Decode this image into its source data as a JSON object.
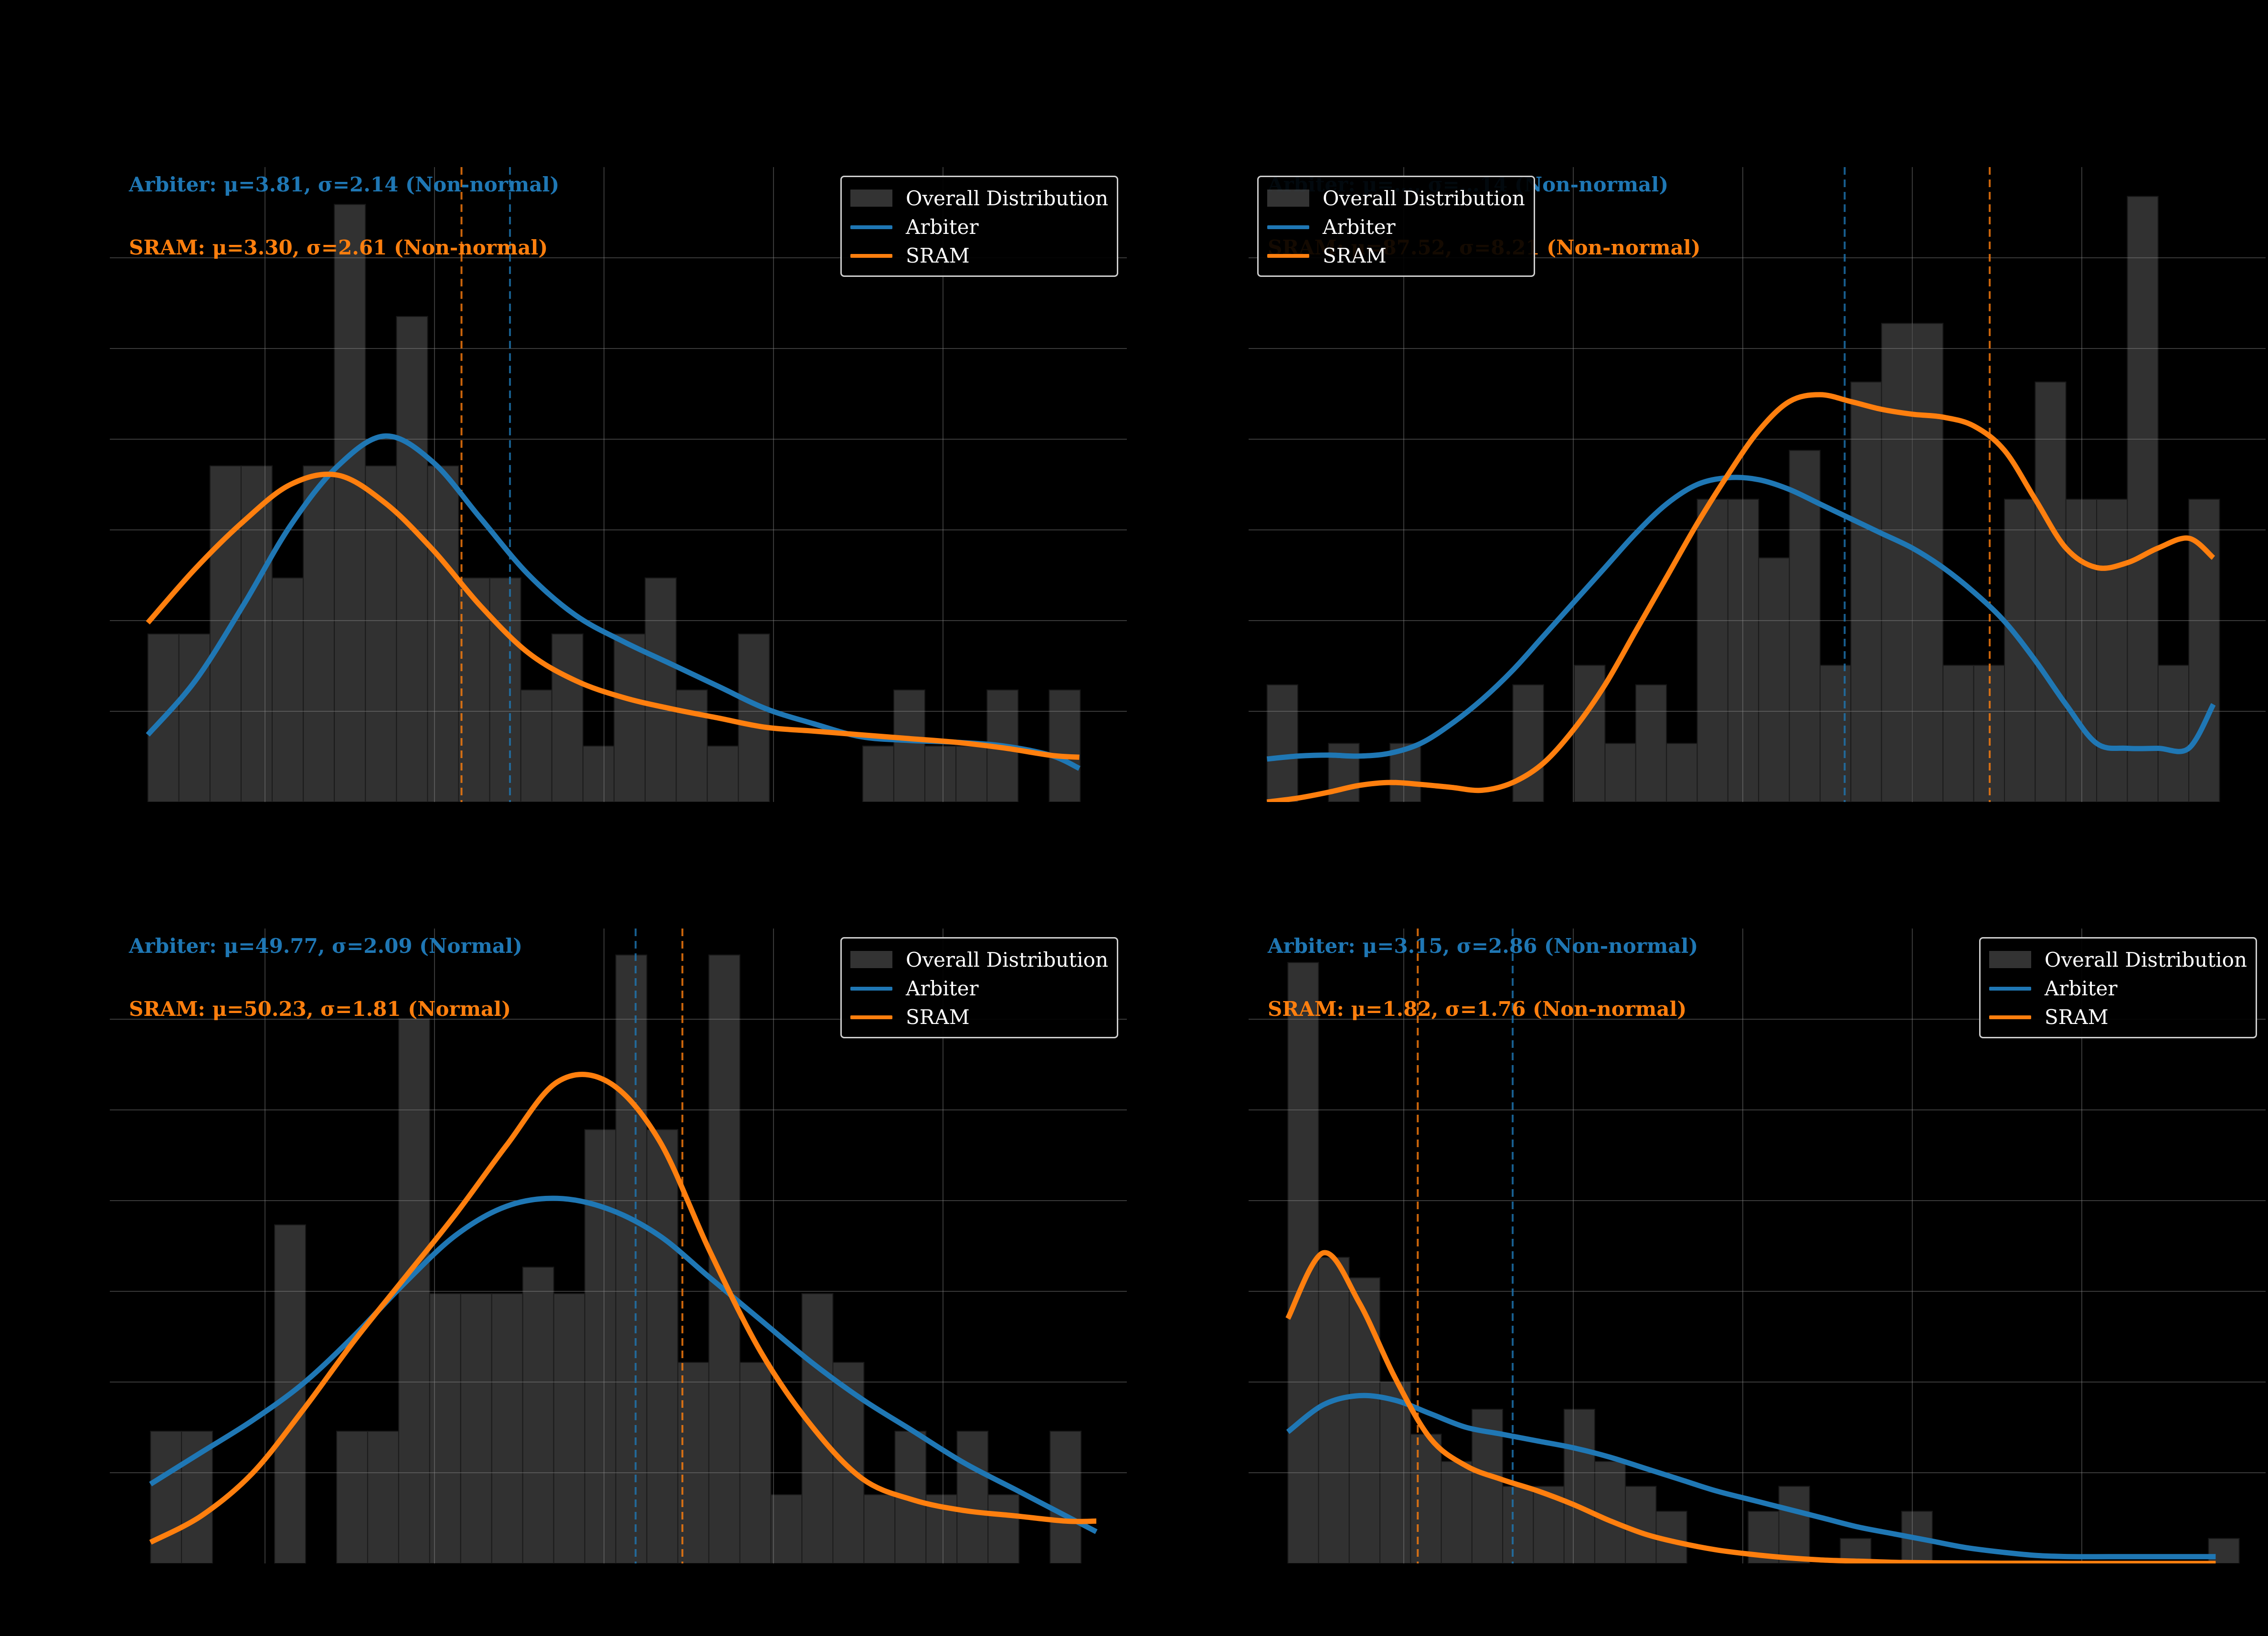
{
  "colors": {
    "arbiter": "#1f77b4",
    "sram": "#ff7f0e",
    "hist": "#3a3a3a",
    "grid": "#8a8a8a",
    "background": "#000000"
  },
  "legend": {
    "overall": "Overall Distribution",
    "arbiter": "Arbiter",
    "sram": "SRAM"
  },
  "chart_data": [
    {
      "type": "histogram-kde",
      "legend_position": "top-right",
      "arbiter_stats": "Arbiter: μ=3.81, σ=2.14 (Non-normal)",
      "sram_stats": "SRAM: μ=3.30, σ=2.61 (Non-normal)",
      "arbiter_mean": 3.81,
      "sram_mean": 3.3,
      "xlim": [
        -0.4,
        10.3
      ],
      "ylim": [
        0,
        34
      ],
      "bins_start": 0.0,
      "bin_width": 0.327,
      "counts": [
        9,
        9,
        18,
        18,
        12,
        18,
        32,
        18,
        26,
        18,
        12,
        12,
        6,
        9,
        3,
        9,
        12,
        6,
        3,
        9,
        0,
        0,
        0,
        3,
        6,
        3,
        3,
        6,
        0,
        6
      ],
      "kde_x": [
        0,
        0.5,
        1,
        1.5,
        2,
        2.5,
        3,
        3.5,
        4,
        4.5,
        5,
        5.5,
        6,
        6.5,
        7,
        7.5,
        8,
        8.5,
        9,
        9.5,
        9.8
      ],
      "arbiter_kde": [
        3.6,
        6.5,
        10.5,
        14.8,
        18.0,
        19.6,
        18.2,
        15.2,
        12.2,
        10.0,
        8.6,
        7.4,
        6.2,
        5.0,
        4.2,
        3.5,
        3.3,
        3.2,
        3.0,
        2.5,
        1.8
      ],
      "sram_kde": [
        9.6,
        12.5,
        15.0,
        17.0,
        17.5,
        16.0,
        13.5,
        10.5,
        8.0,
        6.5,
        5.6,
        5.0,
        4.5,
        4.0,
        3.8,
        3.6,
        3.4,
        3.2,
        2.9,
        2.5,
        2.4
      ]
    },
    {
      "type": "histogram-kde",
      "legend_position": "top-left",
      "arbiter_stats": "Arbiter: μ=…, σ=…14 (Non-normal)",
      "sram_stats": "SRAM: μ=87.52, σ=8.21 (Non-normal)",
      "arbiter_mean": 82.8,
      "sram_mean": 87.52,
      "xlim": [
        63.4,
        96.5
      ],
      "ylim": [
        0,
        6.5
      ],
      "bins_start": 64.0,
      "bin_width": 1.0,
      "counts": [
        1.2,
        0,
        0.6,
        0,
        0.6,
        0,
        0,
        0,
        1.2,
        0,
        1.4,
        0.6,
        1.2,
        0.6,
        3.1,
        3.1,
        2.5,
        3.6,
        1.4,
        4.3,
        4.9,
        4.9,
        1.4,
        1.4,
        3.1,
        4.3,
        3.1,
        3.1,
        6.2,
        1.4,
        3.1
      ],
      "kde_x": [
        64,
        65,
        66,
        67,
        68,
        69,
        70,
        71,
        72,
        73,
        74,
        75,
        76,
        77,
        78,
        79,
        80,
        81,
        82,
        83,
        84,
        85,
        86,
        87,
        88,
        89,
        90,
        91,
        92,
        93,
        94,
        94.8
      ],
      "arbiter_kde": [
        0.44,
        0.47,
        0.48,
        0.47,
        0.5,
        0.6,
        0.8,
        1.05,
        1.35,
        1.7,
        2.05,
        2.4,
        2.75,
        3.05,
        3.25,
        3.32,
        3.3,
        3.2,
        3.05,
        2.9,
        2.75,
        2.6,
        2.4,
        2.15,
        1.85,
        1.45,
        1.0,
        0.6,
        0.55,
        0.55,
        0.55,
        1.0
      ],
      "sram_kde": [
        0.0,
        0.04,
        0.1,
        0.17,
        0.2,
        0.18,
        0.15,
        0.12,
        0.2,
        0.4,
        0.75,
        1.2,
        1.75,
        2.3,
        2.85,
        3.35,
        3.8,
        4.1,
        4.17,
        4.1,
        4.02,
        3.97,
        3.94,
        3.85,
        3.6,
        3.1,
        2.6,
        2.4,
        2.45,
        2.6,
        2.7,
        2.5
      ]
    },
    {
      "type": "histogram-kde",
      "legend_position": "top-right",
      "arbiter_stats": "Arbiter: μ=49.77, σ=2.09 (Normal)",
      "sram_stats": "SRAM: μ=50.23, σ=1.81 (Normal)",
      "arbiter_mean": 49.77,
      "sram_mean": 50.23,
      "xlim": [
        44.6,
        54.6
      ],
      "ylim": [
        0,
        12
      ],
      "bins_start": 45.0,
      "bin_width": 0.305,
      "counts": [
        2.5,
        2.5,
        0,
        0,
        6.4,
        0,
        2.5,
        2.5,
        10.3,
        5.1,
        5.1,
        5.1,
        5.6,
        5.1,
        8.2,
        11.5,
        8.2,
        3.8,
        11.5,
        3.8,
        1.3,
        5.1,
        3.8,
        1.3,
        2.5,
        1.3,
        2.5,
        1.3,
        0,
        2.5
      ],
      "kde_x": [
        45,
        45.5,
        46,
        46.5,
        47,
        47.5,
        48,
        48.5,
        49,
        49.5,
        50,
        50.5,
        51,
        51.5,
        52,
        52.5,
        53,
        53.5,
        54,
        54.3
      ],
      "arbiter_kde": [
        1.5,
        2.1,
        2.7,
        3.4,
        4.3,
        5.3,
        6.2,
        6.75,
        6.9,
        6.7,
        6.2,
        5.4,
        4.6,
        3.8,
        3.1,
        2.5,
        1.9,
        1.4,
        0.9,
        0.6
      ],
      "sram_kde": [
        0.4,
        0.9,
        1.7,
        2.9,
        4.2,
        5.4,
        6.6,
        7.9,
        9.1,
        9.1,
        8.0,
        5.9,
        4.0,
        2.6,
        1.6,
        1.2,
        1.0,
        0.9,
        0.8,
        0.8
      ]
    },
    {
      "type": "histogram-kde",
      "legend_position": "top-right",
      "arbiter_stats": "Arbiter: μ=3.15, σ=2.86 (Non-normal)",
      "sram_stats": "SRAM: μ=1.82, σ=1.76 (Non-normal)",
      "arbiter_mean": 3.15,
      "sram_mean": 1.82,
      "xlim": [
        -0.55,
        13.7
      ],
      "ylim": [
        0,
        28
      ],
      "bins_start": 0.0,
      "bin_width": 0.43,
      "counts": [
        26.5,
        13.5,
        12.6,
        8.0,
        5.7,
        4.5,
        6.8,
        3.4,
        3.4,
        6.8,
        4.5,
        3.4,
        2.3,
        0,
        0,
        2.3,
        3.4,
        0,
        1.1,
        0,
        2.3,
        0,
        0,
        0,
        0,
        0,
        0,
        0,
        0,
        0,
        1.1
      ],
      "kde_x": [
        0,
        0.5,
        1,
        1.5,
        2,
        2.5,
        3,
        3.5,
        4,
        4.5,
        5,
        5.5,
        6,
        6.5,
        7,
        7.5,
        8,
        8.5,
        9,
        9.5,
        10,
        10.5,
        11,
        11.5,
        12,
        12.5,
        13
      ],
      "arbiter_kde": [
        5.8,
        7.0,
        7.4,
        7.2,
        6.6,
        6.0,
        5.7,
        5.4,
        5.1,
        4.7,
        4.2,
        3.7,
        3.2,
        2.8,
        2.4,
        2.0,
        1.6,
        1.3,
        1.0,
        0.7,
        0.5,
        0.35,
        0.3,
        0.3,
        0.3,
        0.3,
        0.3
      ],
      "sram_kde": [
        10.8,
        13.7,
        11.5,
        8.2,
        5.5,
        4.3,
        3.7,
        3.2,
        2.6,
        1.9,
        1.3,
        0.9,
        0.6,
        0.4,
        0.25,
        0.15,
        0.1,
        0.05,
        0.03,
        0.02,
        0.01,
        0.01,
        0,
        0,
        0,
        0,
        0
      ]
    }
  ]
}
